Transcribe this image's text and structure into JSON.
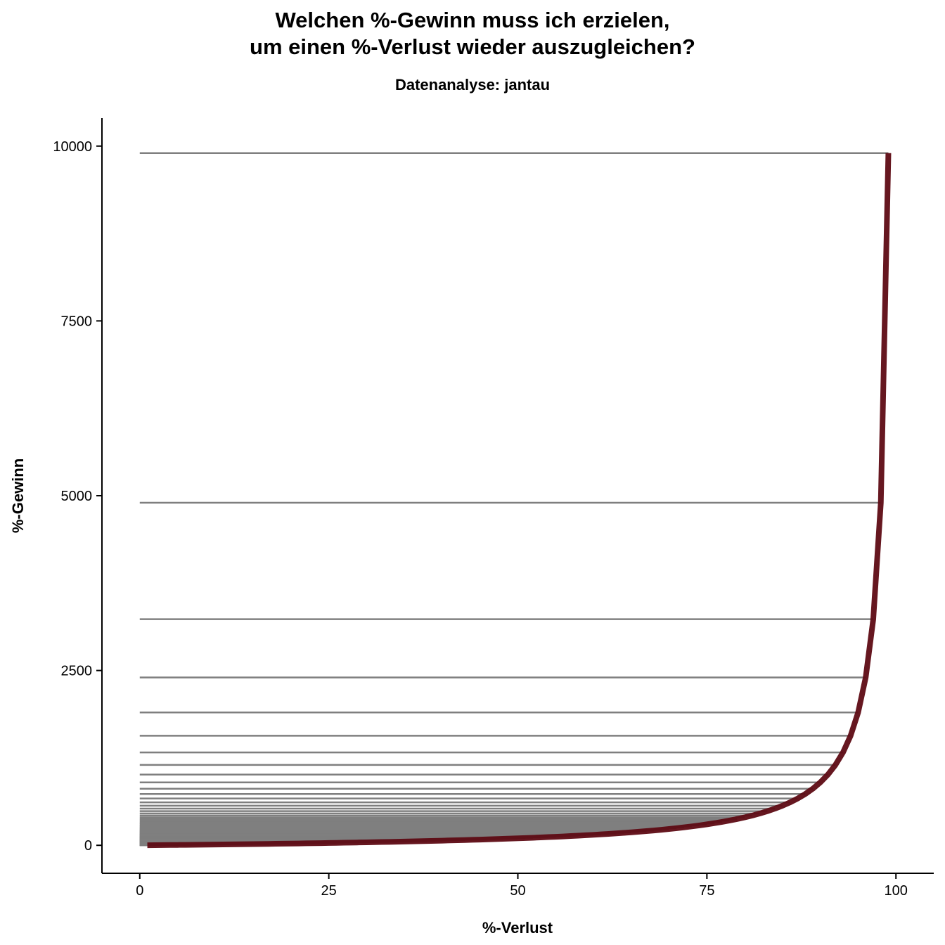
{
  "chart_data": {
    "type": "line",
    "title_lines": [
      "Welchen %-Gewinn muss ich erzielen,",
      "um einen %-Verlust wieder auszugleichen?"
    ],
    "subtitle": "Datenanalyse: jantau",
    "xlabel": "%-Verlust",
    "ylabel": "%-Gewinn",
    "xlim": [
      -5,
      105
    ],
    "ylim": [
      -400,
      10400
    ],
    "x_ticks": [
      0,
      25,
      50,
      75,
      100
    ],
    "y_ticks": [
      0,
      2500,
      5000,
      7500,
      10000
    ],
    "x_tick_labels": [
      "0",
      "25",
      "50",
      "75",
      "100"
    ],
    "y_tick_labels": [
      "0",
      "2500",
      "5000",
      "7500",
      "10000"
    ],
    "formula": "gain = 100 * loss / (100 - loss)",
    "x": [
      1,
      2,
      3,
      4,
      5,
      6,
      7,
      8,
      9,
      10,
      11,
      12,
      13,
      14,
      15,
      16,
      17,
      18,
      19,
      20,
      21,
      22,
      23,
      24,
      25,
      26,
      27,
      28,
      29,
      30,
      31,
      32,
      33,
      34,
      35,
      36,
      37,
      38,
      39,
      40,
      41,
      42,
      43,
      44,
      45,
      46,
      47,
      48,
      49,
      50,
      51,
      52,
      53,
      54,
      55,
      56,
      57,
      58,
      59,
      60,
      61,
      62,
      63,
      64,
      65,
      66,
      67,
      68,
      69,
      70,
      71,
      72,
      73,
      74,
      75,
      76,
      77,
      78,
      79,
      80,
      81,
      82,
      83,
      84,
      85,
      86,
      87,
      88,
      89,
      90,
      91,
      92,
      93,
      94,
      95,
      96,
      97,
      98,
      99
    ],
    "series": [
      {
        "name": "",
        "color": "#5e0b14",
        "stroke_color": "#5e0b14"
      }
    ],
    "hline_color": "#7f7f7f",
    "grid": false
  }
}
